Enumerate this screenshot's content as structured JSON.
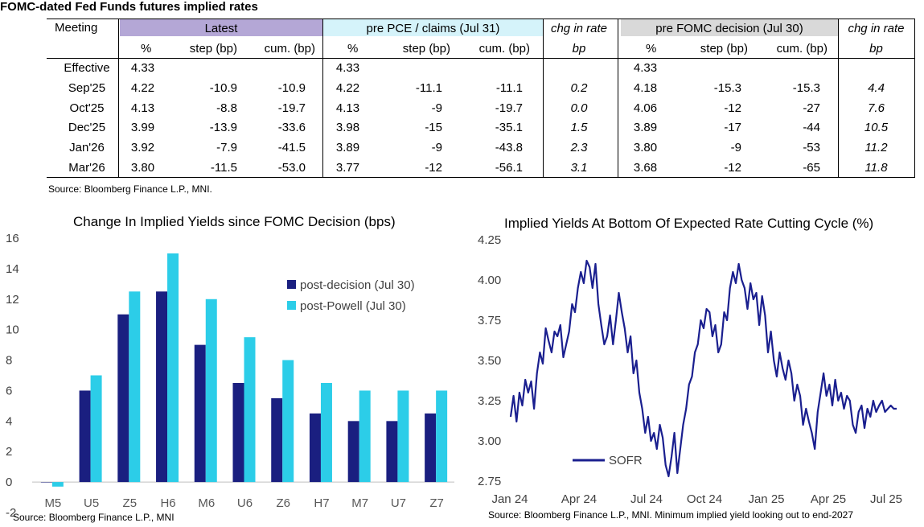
{
  "table": {
    "title": "FOMC-dated Fed Funds futures implied rates",
    "group_headers": {
      "meeting": "Meeting",
      "latest": "Latest",
      "pre_pce": "pre PCE / claims (Jul 31)",
      "chg1": "chg in rate",
      "pre_fomc": "pre FOMC decision (Jul 30)",
      "chg2": "chg in rate"
    },
    "sub_headers": {
      "pct": "%",
      "step": "step (bp)",
      "cum": "cum. (bp)",
      "bp": "bp"
    },
    "rows": [
      {
        "meeting": "Effective",
        "l_pct": "4.33",
        "l_step": "",
        "l_cum": "",
        "p_pct": "4.33",
        "p_step": "",
        "p_cum": "",
        "chg1": "",
        "f_pct": "4.33",
        "f_step": "",
        "f_cum": "",
        "chg2": ""
      },
      {
        "meeting": "Sep'25",
        "l_pct": "4.22",
        "l_step": "-10.9",
        "l_cum": "-10.9",
        "p_pct": "4.22",
        "p_step": "-11.1",
        "p_cum": "-11.1",
        "chg1": "0.2",
        "f_pct": "4.18",
        "f_step": "-15.3",
        "f_cum": "-15.3",
        "chg2": "4.4"
      },
      {
        "meeting": "Oct'25",
        "l_pct": "4.13",
        "l_step": "-8.8",
        "l_cum": "-19.7",
        "p_pct": "4.13",
        "p_step": "-9",
        "p_cum": "-19.7",
        "chg1": "0.0",
        "f_pct": "4.06",
        "f_step": "-12",
        "f_cum": "-27",
        "chg2": "7.6"
      },
      {
        "meeting": "Dec'25",
        "l_pct": "3.99",
        "l_step": "-13.9",
        "l_cum": "-33.6",
        "p_pct": "3.98",
        "p_step": "-15",
        "p_cum": "-35.1",
        "chg1": "1.5",
        "f_pct": "3.89",
        "f_step": "-17",
        "f_cum": "-44",
        "chg2": "10.5"
      },
      {
        "meeting": "Jan'26",
        "l_pct": "3.92",
        "l_step": "-7.9",
        "l_cum": "-41.5",
        "p_pct": "3.89",
        "p_step": "-9",
        "p_cum": "-43.8",
        "chg1": "2.3",
        "f_pct": "3.80",
        "f_step": "-9",
        "f_cum": "-53",
        "chg2": "11.2"
      },
      {
        "meeting": "Mar'26",
        "l_pct": "3.80",
        "l_step": "-11.5",
        "l_cum": "-53.0",
        "p_pct": "3.77",
        "p_step": "-12",
        "p_cum": "-56.1",
        "chg1": "3.1",
        "f_pct": "3.68",
        "f_step": "-12",
        "f_cum": "-65",
        "chg2": "11.8"
      }
    ],
    "source": "Source: Bloomberg Finance L.P., MNI."
  },
  "colors": {
    "latest_header": "#b4a7d6",
    "pre_pce_header": "#d5f3fa",
    "pre_fomc_header": "#d9d9d9",
    "post_decision": "#1a1f80",
    "post_powell": "#2ccde8",
    "sofr_line": "#1a1f8f"
  },
  "chart_data": [
    {
      "type": "bar",
      "title": "Change In Implied Yields since FOMC Decision (bps)",
      "categories": [
        "M5",
        "U5",
        "Z5",
        "H6",
        "M6",
        "U6",
        "Z6",
        "H7",
        "M7",
        "U7",
        "Z7"
      ],
      "series": [
        {
          "name": "post-decision (Jul 30)",
          "values": [
            0,
            6,
            11,
            12.5,
            9,
            6.5,
            5.5,
            4.5,
            4,
            4,
            4.5
          ]
        },
        {
          "name": "post-Powell (Jul 30)",
          "values": [
            -0.3,
            7,
            12.5,
            15,
            12,
            9.5,
            8,
            6.5,
            6,
            6,
            6
          ]
        }
      ],
      "ylim": [
        -2,
        16
      ],
      "yticks": [
        "-2",
        "0",
        "2",
        "4",
        "6",
        "8",
        "10",
        "12",
        "14",
        "16"
      ],
      "legend": "right",
      "source": "Source: Bloomberg Finance L.P., MNI"
    },
    {
      "type": "line",
      "title": "Implied Yields At Bottom Of Expected Rate Cutting Cycle (%)",
      "xlabels": [
        "Jan 24",
        "Apr 24",
        "Jul 24",
        "Oct 24",
        "Jan 25",
        "Apr 25",
        "Jul 25"
      ],
      "ylim": [
        2.75,
        4.25
      ],
      "yticks": [
        "4.25",
        "4.00",
        "3.75",
        "3.50",
        "3.25",
        "3.00",
        "2.75"
      ],
      "series": [
        {
          "name": "SOFR",
          "x": [
            0,
            0.15,
            0.3,
            0.45,
            0.6,
            0.75,
            0.9,
            1.05,
            1.2,
            1.35,
            1.5,
            1.65,
            1.8,
            1.95,
            2.1,
            2.25,
            2.4,
            2.55,
            2.7,
            2.85,
            3.0,
            3.15,
            3.3,
            3.45,
            3.6,
            3.75,
            3.9,
            4.05,
            4.2,
            4.35,
            4.5,
            4.65,
            4.8,
            4.95,
            5.1,
            5.25,
            5.4,
            5.55,
            5.7,
            5.85,
            6.0,
            6.15,
            6.3,
            6.45,
            6.6,
            6.75,
            6.9,
            7.05,
            7.2,
            7.35,
            7.5,
            7.65,
            7.8,
            7.95,
            8.1,
            8.25,
            8.4,
            8.55,
            8.7,
            8.85,
            9.0,
            9.15,
            9.3,
            9.45,
            9.6,
            9.75,
            9.9,
            10.05,
            10.2,
            10.35,
            10.5,
            10.65,
            10.8,
            10.95,
            11.1,
            11.25,
            11.4,
            11.55,
            11.7,
            11.85,
            12.0,
            12.15,
            12.3,
            12.45,
            12.6,
            12.75,
            12.9,
            13.05,
            13.2,
            13.35,
            13.5,
            13.65,
            13.8,
            13.95,
            14.1,
            14.25,
            14.4,
            14.55,
            14.7,
            14.85,
            15.0,
            15.15,
            15.3,
            15.45,
            15.6,
            15.75,
            15.9,
            16.05,
            16.2,
            16.35,
            16.5,
            16.65,
            16.8,
            16.95,
            17.1,
            17.25,
            17.4,
            17.55,
            17.7,
            17.85,
            18.0,
            18.15,
            18.3,
            18.45,
            18.6,
            18.75,
            18.9,
            19.05,
            19.2,
            19.35,
            19.5,
            19.65,
            19.8
          ],
          "values": [
            3.15,
            3.28,
            3.12,
            3.3,
            3.22,
            3.38,
            3.3,
            3.37,
            3.2,
            3.42,
            3.55,
            3.48,
            3.7,
            3.62,
            3.55,
            3.68,
            3.65,
            3.72,
            3.52,
            3.6,
            3.68,
            3.85,
            3.8,
            3.95,
            4.05,
            3.98,
            4.12,
            4.08,
            3.95,
            4.1,
            3.85,
            3.72,
            3.6,
            3.65,
            3.78,
            3.6,
            3.75,
            3.92,
            3.8,
            3.7,
            3.55,
            3.65,
            3.42,
            3.5,
            3.3,
            3.2,
            3.05,
            3.15,
            3.0,
            3.05,
            2.95,
            3.1,
            3.02,
            2.85,
            2.78,
            2.9,
            3.05,
            2.8,
            2.95,
            3.1,
            3.2,
            3.35,
            3.4,
            3.55,
            3.6,
            3.75,
            3.7,
            3.82,
            3.8,
            3.65,
            3.72,
            3.55,
            3.6,
            3.8,
            3.75,
            3.95,
            4.05,
            3.98,
            4.1,
            4.0,
            3.95,
            3.82,
            3.98,
            3.88,
            3.92,
            3.72,
            3.9,
            3.78,
            3.55,
            3.68,
            3.5,
            3.4,
            3.55,
            3.45,
            3.38,
            3.5,
            3.42,
            3.25,
            3.35,
            3.28,
            3.1,
            3.2,
            3.12,
            3.05,
            2.95,
            3.18,
            3.3,
            3.42,
            3.28,
            3.35,
            3.22,
            3.38,
            3.25,
            3.3,
            3.2,
            3.28,
            3.25,
            3.1,
            3.05,
            3.18,
            3.22,
            3.08,
            3.2,
            3.15,
            3.25,
            3.18,
            3.22,
            3.25,
            3.18,
            3.2,
            3.22,
            3.2,
            3.2
          ]
        }
      ],
      "legend": "bottom-left",
      "source": "Source: Bloomberg Finance L.P., MNI. Minimum implied yield looking out to end-2027"
    }
  ]
}
